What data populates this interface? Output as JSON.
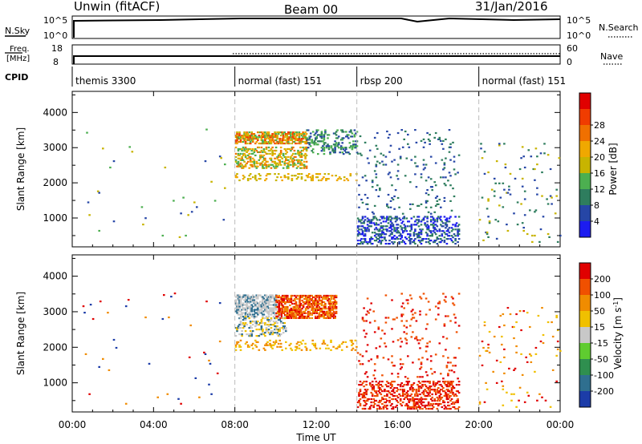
{
  "header": {
    "title": "Unwin (fitACF)",
    "beam": "Beam 00",
    "date": "31/Jan/2016"
  },
  "top_panels": {
    "nsky_label": "N.Sky",
    "nsky_ticks": [
      "10^5",
      "10^0"
    ],
    "nsearch_label": "N.Search",
    "nsearch_ticks": [
      "10^5",
      "10^0"
    ],
    "freq_label": "Freq.",
    "freq_unit": "[MHz]",
    "freq_ticks": [
      "18",
      "8"
    ],
    "nave_label": "Nave",
    "nave_ticks": [
      "60",
      "0"
    ],
    "cpid_label": "CPID"
  },
  "cpid_segments": [
    {
      "label": "themis 3300",
      "start_h": 0
    },
    {
      "label": "normal (fast) 151",
      "start_h": 8
    },
    {
      "label": "rbsp 200",
      "start_h": 14
    },
    {
      "label": "normal (fast) 151",
      "start_h": 20
    }
  ],
  "axes": {
    "ylabel": "Slant Range [km]",
    "xlabel": "Time UT",
    "x_ticks": [
      "00:00",
      "04:00",
      "08:00",
      "12:00",
      "16:00",
      "20:00",
      "00:00"
    ],
    "x_tick_hours": [
      0,
      4,
      8,
      12,
      16,
      20,
      24
    ],
    "y_ticks": [
      "1000",
      "2000",
      "3000",
      "4000"
    ],
    "y_tick_values": [
      1000,
      2000,
      3000,
      4000
    ]
  },
  "power_scale": {
    "label": "Power [dB]",
    "ticks": [
      "4",
      "8",
      "12",
      "16",
      "20",
      "24",
      "28"
    ],
    "colors": [
      "#1c1cf0",
      "#2646a6",
      "#2e7d5e",
      "#4caf50",
      "#c8b400",
      "#f0a800",
      "#f07000",
      "#f03c00",
      "#e00000"
    ]
  },
  "velocity_scale": {
    "label": "Velocity [m s",
    "label_sup": "-1",
    "label_end": "]",
    "ticks": [
      "200",
      "100",
      "50",
      "15",
      "-15",
      "-50",
      "-100",
      "-200"
    ],
    "colors": [
      "#1c3ca8",
      "#2f6f8f",
      "#2f8f4f",
      "#5fcc30",
      "#c8c8c8",
      "#f0c000",
      "#f08c00",
      "#f05000",
      "#e00000"
    ]
  },
  "chart_data": {
    "type": "heatmap",
    "x_range_hours": [
      0,
      24
    ],
    "y_range_km": [
      180,
      4600
    ],
    "panels": [
      {
        "name": "power",
        "regions": [
          {
            "t": [
              0.5,
              7.5
            ],
            "r": [
              300,
              3500
            ],
            "density": 0.004,
            "colors": [
              "#2646a6",
              "#4caf50",
              "#c8b400"
            ]
          },
          {
            "t": [
              8.0,
              11.5
            ],
            "r": [
              3100,
              3450
            ],
            "density": 0.6,
            "colors": [
              "#f0a800",
              "#c8b400",
              "#f07000",
              "#4caf50",
              "#f03c00"
            ]
          },
          {
            "t": [
              8.0,
              11.5
            ],
            "r": [
              2400,
              3000
            ],
            "density": 0.35,
            "colors": [
              "#f0a800",
              "#4caf50",
              "#c8b400",
              "#f07000"
            ]
          },
          {
            "t": [
              8.0,
              14.0
            ],
            "r": [
              2050,
              2250
            ],
            "density": 0.2,
            "colors": [
              "#c8b400",
              "#f0a800"
            ]
          },
          {
            "t": [
              11.5,
              14.0
            ],
            "r": [
              2800,
              3500
            ],
            "density": 0.25,
            "colors": [
              "#2646a6",
              "#2e7d5e",
              "#4caf50"
            ]
          },
          {
            "t": [
              14.0,
              19.0
            ],
            "r": [
              250,
              1050
            ],
            "density": 0.3,
            "colors": [
              "#1c1cf0",
              "#2646a6",
              "#2e7d5e"
            ]
          },
          {
            "t": [
              14.0,
              19.0
            ],
            "r": [
              1100,
              3500
            ],
            "density": 0.04,
            "colors": [
              "#2646a6",
              "#2e7d5e"
            ]
          },
          {
            "t": [
              20.0,
              24.0
            ],
            "r": [
              300,
              3100
            ],
            "density": 0.02,
            "colors": [
              "#2646a6",
              "#2e7d5e",
              "#c8b400"
            ]
          }
        ]
      },
      {
        "name": "velocity",
        "regions": [
          {
            "t": [
              0.5,
              7.5
            ],
            "r": [
              300,
              3500
            ],
            "density": 0.004,
            "colors": [
              "#e00000",
              "#f08c00",
              "#1c3ca8"
            ]
          },
          {
            "t": [
              8.0,
              10.0
            ],
            "r": [
              2900,
              3450
            ],
            "density": 0.6,
            "colors": [
              "#c8c8c8",
              "#c8c8c8",
              "#2f6f8f"
            ]
          },
          {
            "t": [
              10.0,
              13.0
            ],
            "r": [
              2800,
              3450
            ],
            "density": 0.6,
            "colors": [
              "#f05000",
              "#e00000",
              "#f08c00"
            ]
          },
          {
            "t": [
              8.0,
              10.5
            ],
            "r": [
              2300,
              2850
            ],
            "density": 0.3,
            "colors": [
              "#c8c8c8",
              "#2f6f8f",
              "#f0c000"
            ]
          },
          {
            "t": [
              8.0,
              14.0
            ],
            "r": [
              1900,
              2200
            ],
            "density": 0.15,
            "colors": [
              "#f0c000",
              "#f08c00"
            ]
          },
          {
            "t": [
              14.0,
              19.0
            ],
            "r": [
              250,
              1050
            ],
            "density": 0.3,
            "colors": [
              "#e00000",
              "#f05000"
            ]
          },
          {
            "t": [
              14.0,
              19.0
            ],
            "r": [
              1100,
              3500
            ],
            "density": 0.04,
            "colors": [
              "#e00000",
              "#f05000"
            ]
          },
          {
            "t": [
              20.0,
              24.0
            ],
            "r": [
              300,
              3100
            ],
            "density": 0.02,
            "colors": [
              "#f08c00",
              "#e00000",
              "#f0c000"
            ]
          }
        ]
      }
    ]
  }
}
